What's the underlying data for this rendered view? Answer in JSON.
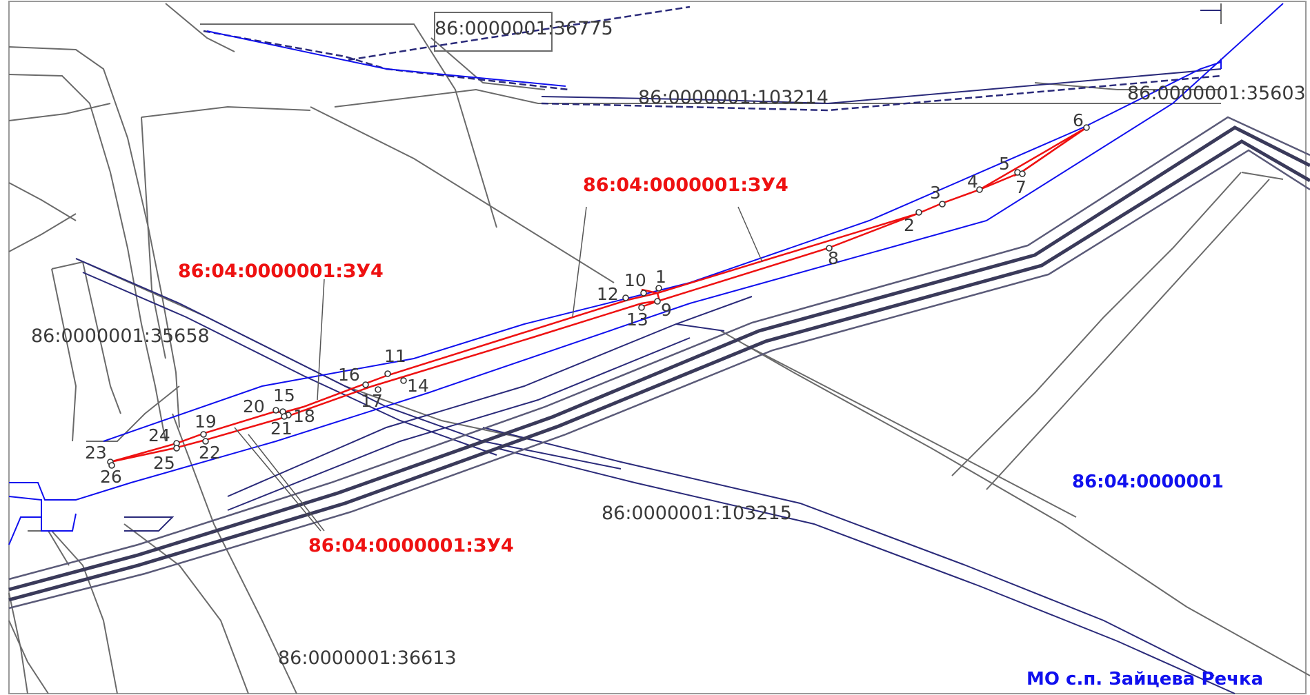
{
  "parcels": [
    "86:0000001:36775",
    "86:0000001:103214",
    "86:0000001:35603",
    "86:0000001:35658",
    "86:0000001:103215",
    "86:0000001:36613"
  ],
  "zu_labels": [
    "86:04:0000001:ЗУ4",
    "86:04:0000001:ЗУ4",
    "86:04:0000001:ЗУ4"
  ],
  "quarter_label": "86:04:0000001",
  "municipality_label": "МО с.п. Зайцева Речка",
  "points": [
    "1",
    "2",
    "3",
    "4",
    "5",
    "6",
    "7",
    "8",
    "9",
    "10",
    "11",
    "12",
    "13",
    "14",
    "15",
    "16",
    "17",
    "18",
    "19",
    "20",
    "21",
    "22",
    "23",
    "24",
    "25",
    "26"
  ],
  "colors": {
    "parcel_text": "#3a3a3a",
    "zu_text": "#ee1111",
    "quarter_text": "#1010ee",
    "boundary_red": "#ee1111",
    "boundary_blue": "#1010ee",
    "boundary_navy": "#2a2a7a"
  }
}
